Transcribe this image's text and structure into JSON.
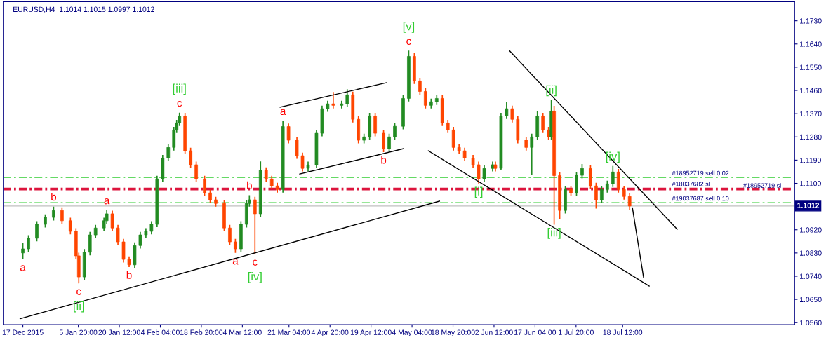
{
  "chart_data": {
    "type": "candlestick",
    "title": "EURUSD,H4  1.1014 1.1015 1.0997 1.1012",
    "colors": [
      "#228b22",
      "#228b22",
      "#228b22",
      "#228b22",
      "#228b22",
      "#ff4500",
      "#ff4500",
      "#ff4500",
      "#ff4500",
      "#228b22",
      "#228b22",
      "#228b22",
      "#228b22",
      "#228b22",
      "#ff4500",
      "#ff4500",
      "#ff4500",
      "#ff4500",
      "#228b22",
      "#228b22",
      "#228b22",
      "#228b22",
      "#228b22",
      "#228b22",
      "#228b22",
      "#228b22",
      "#228b22",
      "#228b22",
      "#ff4500",
      "#ff4500",
      "#ff4500",
      "#ff4500",
      "#ff4500",
      "#ff4500",
      "#ff4500",
      "#ff4500",
      "#ff4500",
      "#228b22",
      "#228b22",
      "#228b22",
      "#ff4500",
      "#228b22",
      "#ff4500",
      "#ff4500",
      "#ff4500",
      "#228b22",
      "#ff4500",
      "#ff4500",
      "#ff4500",
      "#228b22",
      "#228b22",
      "#228b22",
      "#228b22",
      "#ff4500",
      "#228b22",
      "#228b22",
      "#ff4500",
      "#ff4500",
      "#228b22",
      "#228b22",
      "#ff4500",
      "#ff4500",
      "#228b22",
      "#228b22",
      "#228b22",
      "#228b22",
      "#ff4500",
      "#ff4500",
      "#ff4500",
      "#228b22",
      "#228b22",
      "#ff4500",
      "#ff4500",
      "#ff4500",
      "#ff4500",
      "#ff4500",
      "#ff4500",
      "#ff4500",
      "#228b22",
      "#228b22",
      "#ff4500",
      "#228b22",
      "#228b22",
      "#ff4500",
      "#ff4500",
      "#ff4500",
      "#228b22",
      "#228b22",
      "#ff4500",
      "#ff4500",
      "#228b22",
      "#ff4500",
      "#ff4500",
      "#228b22",
      "#ff4500",
      "#228b22",
      "#228b22",
      "#ff4500",
      "#ff4500",
      "#228b22",
      "#228b22",
      "#228b22",
      "#ff4500",
      "#ff4500",
      "#ff4500"
    ],
    "x": [
      "2015-12-17",
      "2015-12-19",
      "2015-12-22",
      "2015-12-25",
      "2015-12-28",
      "2015-12-31",
      "2016-01-03",
      "2016-01-05",
      "2016-01-06",
      "2016-01-08",
      "2016-01-10",
      "2016-01-12",
      "2016-01-15",
      "2016-01-16",
      "2016-01-18",
      "2016-01-20",
      "2016-01-22",
      "2016-01-24",
      "2016-01-26",
      "2016-01-28",
      "2016-01-30",
      "2016-02-01",
      "2016-02-03",
      "2016-02-05",
      "2016-02-07",
      "2016-02-09",
      "2016-02-10",
      "2016-02-11",
      "2016-02-13",
      "2016-02-15",
      "2016-02-17",
      "2016-02-20",
      "2016-02-22",
      "2016-02-24",
      "2016-02-27",
      "2016-02-29",
      "2016-03-02",
      "2016-03-04",
      "2016-03-06",
      "2016-03-07",
      "2016-03-09",
      "2016-03-11",
      "2016-03-13",
      "2016-03-15",
      "2016-03-17",
      "2016-03-19",
      "2016-03-21",
      "2016-03-24",
      "2016-03-26",
      "2016-03-28",
      "2016-03-31",
      "2016-04-02",
      "2016-04-04",
      "2016-04-06",
      "2016-04-09",
      "2016-04-11",
      "2016-04-13",
      "2016-04-15",
      "2016-04-17",
      "2016-04-19",
      "2016-04-21",
      "2016-04-24",
      "2016-04-26",
      "2016-04-28",
      "2016-05-01",
      "2016-05-03",
      "2016-05-05",
      "2016-05-07",
      "2016-05-09",
      "2016-05-11",
      "2016-05-13",
      "2016-05-15",
      "2016-05-17",
      "2016-05-19",
      "2016-05-21",
      "2016-05-23",
      "2016-05-26",
      "2016-05-28",
      "2016-05-30",
      "2016-06-02",
      "2016-06-03",
      "2016-06-05",
      "2016-06-07",
      "2016-06-09",
      "2016-06-11",
      "2016-06-14",
      "2016-06-16",
      "2016-06-18",
      "2016-06-20",
      "2016-06-22",
      "2016-06-23",
      "2016-06-24",
      "2016-06-26",
      "2016-06-28",
      "2016-06-30",
      "2016-07-02",
      "2016-07-04",
      "2016-07-07",
      "2016-07-09",
      "2016-07-11",
      "2016-07-13",
      "2016-07-15",
      "2016-07-17",
      "2016-07-19",
      "2016-07-21"
    ],
    "ohlc": [
      [
        1.083,
        1.087,
        1.0805,
        1.0846
      ],
      [
        1.0846,
        1.0899,
        1.0834,
        1.0887
      ],
      [
        1.0887,
        1.0953,
        1.0875,
        1.0941
      ],
      [
        1.0941,
        1.098,
        1.0929,
        1.0968
      ],
      [
        1.0968,
        1.101,
        1.0956,
        1.0995
      ],
      [
        1.0995,
        1.1007,
        1.0943,
        1.0955
      ],
      [
        1.0955,
        1.0967,
        1.0902,
        1.0914
      ],
      [
        1.0914,
        1.0926,
        1.0807,
        1.0819
      ],
      [
        1.0819,
        1.0831,
        1.0712,
        1.0737
      ],
      [
        1.0737,
        1.0845,
        1.0725,
        1.0833
      ],
      [
        1.0833,
        1.0912,
        1.0821,
        1.09
      ],
      [
        1.09,
        1.0939,
        1.0888,
        1.0927
      ],
      [
        1.0927,
        1.0967,
        1.0915,
        1.0955
      ],
      [
        1.0955,
        1.0996,
        1.0943,
        1.0982
      ],
      [
        1.0982,
        1.0994,
        1.0915,
        1.0927
      ],
      [
        1.0927,
        1.0939,
        1.0861,
        1.0873
      ],
      [
        1.0873,
        1.0885,
        1.0793,
        1.0805
      ],
      [
        1.0805,
        1.0817,
        1.0775,
        1.0784
      ],
      [
        1.0784,
        1.0871,
        1.0772,
        1.0859
      ],
      [
        1.0859,
        1.0912,
        1.0847,
        1.09
      ],
      [
        1.09,
        1.0926,
        1.0888,
        1.0914
      ],
      [
        1.0914,
        1.0953,
        1.0902,
        1.0941
      ],
      [
        1.0941,
        1.1129,
        1.093,
        1.1117
      ],
      [
        1.1117,
        1.121,
        1.1105,
        1.1198
      ],
      [
        1.1198,
        1.1251,
        1.1186,
        1.1239
      ],
      [
        1.1239,
        1.1319,
        1.1227,
        1.1307
      ],
      [
        1.1307,
        1.1346,
        1.1295,
        1.1334
      ],
      [
        1.1334,
        1.1374,
        1.1322,
        1.1361
      ],
      [
        1.1361,
        1.1373,
        1.1214,
        1.1226
      ],
      [
        1.1226,
        1.1238,
        1.116,
        1.1172
      ],
      [
        1.1172,
        1.1184,
        1.1105,
        1.1117
      ],
      [
        1.1117,
        1.1129,
        1.1051,
        1.1063
      ],
      [
        1.1063,
        1.1075,
        1.1024,
        1.1036
      ],
      [
        1.1036,
        1.1048,
        1.101,
        1.1022
      ],
      [
        1.1022,
        1.1034,
        1.0915,
        1.0927
      ],
      [
        1.0927,
        1.0939,
        1.0861,
        1.0873
      ],
      [
        1.0873,
        1.0885,
        1.083,
        1.0846
      ],
      [
        1.0846,
        1.0953,
        1.0834,
        1.0941
      ],
      [
        1.0941,
        1.1034,
        1.0929,
        1.1022
      ],
      [
        1.1022,
        1.1054,
        1.101,
        1.1036
      ],
      [
        1.1036,
        1.1048,
        1.0826,
        1.0982
      ],
      [
        1.0982,
        1.1185,
        1.097,
        1.115
      ],
      [
        1.115,
        1.1162,
        1.1105,
        1.1117
      ],
      [
        1.1117,
        1.1129,
        1.1078,
        1.109
      ],
      [
        1.109,
        1.1102,
        1.1064,
        1.1076
      ],
      [
        1.1076,
        1.1342,
        1.1064,
        1.132
      ],
      [
        1.132,
        1.1332,
        1.1255,
        1.1267
      ],
      [
        1.1267,
        1.1279,
        1.1195,
        1.1207
      ],
      [
        1.1207,
        1.1219,
        1.1146,
        1.1158
      ],
      [
        1.1158,
        1.1184,
        1.1146,
        1.1172
      ],
      [
        1.1172,
        1.1306,
        1.116,
        1.1294
      ],
      [
        1.1294,
        1.1401,
        1.1282,
        1.1389
      ],
      [
        1.1389,
        1.142,
        1.1377,
        1.1408
      ],
      [
        1.1408,
        1.1454,
        1.139,
        1.1402
      ],
      [
        1.1402,
        1.142,
        1.139,
        1.1408
      ],
      [
        1.1408,
        1.1465,
        1.1396,
        1.1443
      ],
      [
        1.1443,
        1.1455,
        1.1336,
        1.1348
      ],
      [
        1.1348,
        1.136,
        1.1255,
        1.1267
      ],
      [
        1.1267,
        1.1292,
        1.1255,
        1.128
      ],
      [
        1.128,
        1.1373,
        1.1268,
        1.1361
      ],
      [
        1.1361,
        1.1373,
        1.1282,
        1.1294
      ],
      [
        1.1294,
        1.1306,
        1.1221,
        1.1234
      ],
      [
        1.1234,
        1.1292,
        1.1222,
        1.128
      ],
      [
        1.128,
        1.1333,
        1.1268,
        1.1321
      ],
      [
        1.1321,
        1.1441,
        1.1309,
        1.1429
      ],
      [
        1.1429,
        1.1614,
        1.1417,
        1.1592
      ],
      [
        1.1592,
        1.1604,
        1.1485,
        1.1497
      ],
      [
        1.1497,
        1.1509,
        1.1444,
        1.1456
      ],
      [
        1.1456,
        1.1468,
        1.139,
        1.1402
      ],
      [
        1.1402,
        1.1428,
        1.139,
        1.1416
      ],
      [
        1.1416,
        1.1441,
        1.1404,
        1.1429
      ],
      [
        1.1429,
        1.1441,
        1.1322,
        1.1334
      ],
      [
        1.1334,
        1.1346,
        1.1295,
        1.1307
      ],
      [
        1.1307,
        1.1319,
        1.1227,
        1.1239
      ],
      [
        1.1239,
        1.1251,
        1.1214,
        1.1226
      ],
      [
        1.1226,
        1.1238,
        1.1186,
        1.1198
      ],
      [
        1.1198,
        1.121,
        1.116,
        1.1172
      ],
      [
        1.1172,
        1.1184,
        1.1099,
        1.1117
      ],
      [
        1.1117,
        1.117,
        1.1105,
        1.1158
      ],
      [
        1.1158,
        1.1184,
        1.1146,
        1.1172
      ],
      [
        1.1172,
        1.1184,
        1.1146,
        1.1158
      ],
      [
        1.1158,
        1.1373,
        1.115,
        1.1361
      ],
      [
        1.1361,
        1.1416,
        1.1349,
        1.1389
      ],
      [
        1.1389,
        1.1401,
        1.1336,
        1.1348
      ],
      [
        1.1348,
        1.136,
        1.1255,
        1.1267
      ],
      [
        1.1267,
        1.1279,
        1.1227,
        1.1239
      ],
      [
        1.1239,
        1.1292,
        1.1131,
        1.128
      ],
      [
        1.128,
        1.138,
        1.1268,
        1.1361
      ],
      [
        1.1361,
        1.1373,
        1.1295,
        1.1307
      ],
      [
        1.1307,
        1.1319,
        1.1268,
        1.128
      ],
      [
        1.128,
        1.1425,
        1.1268,
        1.138
      ],
      [
        1.138,
        1.14,
        1.094,
        1.113
      ],
      [
        1.113,
        1.1142,
        1.096,
        1.0995
      ],
      [
        1.0995,
        1.1088,
        1.0983,
        1.1076
      ],
      [
        1.1076,
        1.1088,
        1.1051,
        1.1063
      ],
      [
        1.1063,
        1.1143,
        1.1051,
        1.1131
      ],
      [
        1.1131,
        1.1175,
        1.1119,
        1.1158
      ],
      [
        1.1158,
        1.117,
        1.1078,
        1.109
      ],
      [
        1.109,
        1.1102,
        1.1002,
        1.1036
      ],
      [
        1.1036,
        1.1088,
        1.1024,
        1.1076
      ],
      [
        1.1076,
        1.111,
        1.1064,
        1.1098
      ],
      [
        1.1098,
        1.1167,
        1.1086,
        1.1144
      ],
      [
        1.1144,
        1.1156,
        1.1064,
        1.1076
      ],
      [
        1.1076,
        1.1088,
        1.1037,
        1.1049
      ],
      [
        1.1049,
        1.1061,
        1.0997,
        1.1012
      ]
    ],
    "series": [
      {
        "type": "line",
        "color": "#000000",
        "x": [
          "2015-12-16",
          "2016-05-14"
        ],
        "values": [
          1.0575,
          1.1031
        ]
      },
      {
        "type": "line",
        "color": "#000000",
        "x": [
          "2016-03-18",
          "2016-04-25"
        ],
        "values": [
          1.1395,
          1.149
        ]
      },
      {
        "type": "line",
        "color": "#000000",
        "x": [
          "2016-03-25",
          "2016-05-01"
        ],
        "values": [
          1.1136,
          1.1234
        ]
      },
      {
        "type": "line",
        "color": "#000000",
        "x": [
          "2016-05-10",
          "2016-07-28"
        ],
        "values": [
          1.1226,
          1.0702
        ]
      },
      {
        "type": "line",
        "color": "#000000",
        "x": [
          "2016-06-08",
          "2016-08-07"
        ],
        "values": [
          1.1614,
          1.0922
        ]
      },
      {
        "type": "line",
        "color": "#000000",
        "x": [
          "2016-07-22",
          "2016-07-26"
        ],
        "values": [
          1.1005,
          1.0734
        ]
      }
    ],
    "ref_lines": [
      {
        "axis": "y",
        "value": 1.1123,
        "label": "#18952719 sell 0.02",
        "color": "#32cd32",
        "line_style": "dashed"
      },
      {
        "axis": "y",
        "value": 1.1081,
        "label": "#18037682 sl",
        "color": "#dc143c",
        "line_style": "dashed"
      },
      {
        "axis": "y",
        "value": 1.1075,
        "label": "#18952719 sl",
        "color": "#dc143c",
        "line_style": "dashed"
      },
      {
        "axis": "y",
        "value": 1.1025,
        "label": "#19037687 sell 0.10",
        "color": "#32cd32",
        "line_style": "dashed"
      },
      {
        "axis": "y",
        "value": 1.1012,
        "label": "1.1012",
        "color": "#c0c0c0",
        "line_style": "solid"
      }
    ],
    "annotations": [
      {
        "text": "a",
        "x": "2015-12-17",
        "y": 1.0805
      },
      {
        "text": "b",
        "x": "2015-12-28",
        "y": 1.101
      },
      {
        "text": "c",
        "x": "2016-01-06",
        "y": 1.0712
      },
      {
        "text": "[ii]",
        "x": "2016-01-06",
        "y": 1.0712
      },
      {
        "text": "a",
        "x": "2016-01-16",
        "y": 1.0996
      },
      {
        "text": "b",
        "x": "2016-01-24",
        "y": 1.0775
      },
      {
        "text": "c",
        "x": "2016-02-11",
        "y": 1.1374
      },
      {
        "text": "[iii]",
        "x": "2016-02-11",
        "y": 1.1374
      },
      {
        "text": "a",
        "x": "2016-03-02",
        "y": 1.083
      },
      {
        "text": "b",
        "x": "2016-03-07",
        "y": 1.1054
      },
      {
        "text": "c",
        "x": "2016-03-09",
        "y": 1.0826
      },
      {
        "text": "[iv]",
        "x": "2016-03-09",
        "y": 1.0826
      },
      {
        "text": "a",
        "x": "2016-03-19",
        "y": 1.1342
      },
      {
        "text": "b",
        "x": "2016-04-24",
        "y": 1.1221
      },
      {
        "text": "c",
        "x": "2016-05-03",
        "y": 1.1614
      },
      {
        "text": "[v]",
        "x": "2016-05-03",
        "y": 1.1614
      },
      {
        "text": "[i]",
        "x": "2016-05-28",
        "y": 1.1099
      },
      {
        "text": "[ii]",
        "x": "2016-06-23",
        "y": 1.1425
      },
      {
        "text": "[iii]",
        "x": "2016-06-24",
        "y": 1.094
      },
      {
        "text": "[iv]",
        "x": "2016-07-15",
        "y": 1.1167
      }
    ],
    "xlim": [
      "2015-12-10",
      "2016-09-18"
    ],
    "xticks": [
      {
        "value": "2015-12-17",
        "label": "17 Dec 2015"
      },
      {
        "value": "2016-01-05T20:00",
        "label": "5 Jan 20:00"
      },
      {
        "value": "2016-01-20T12:00",
        "label": "20 Jan 12:00"
      },
      {
        "value": "2016-02-04T04:00",
        "label": "4 Feb 04:00"
      },
      {
        "value": "2016-02-18T20:00",
        "label": "18 Feb 20:00"
      },
      {
        "value": "2016-03-04T12:00",
        "label": "4 Mar 12:00"
      },
      {
        "value": "2016-03-21T04:00",
        "label": "21 Mar 04:00"
      },
      {
        "value": "2016-04-04T20:00",
        "label": "4 Apr 20:00"
      },
      {
        "value": "2016-04-19T12:00",
        "label": "19 Apr 12:00"
      },
      {
        "value": "2016-05-04T04:00",
        "label": "4 May 04:00"
      },
      {
        "value": "2016-05-18T20:00",
        "label": "18 May 20:00"
      },
      {
        "value": "2016-06-02T12:00",
        "label": "2 Jun 12:00"
      },
      {
        "value": "2016-06-17T04:00",
        "label": "17 Jun 04:00"
      },
      {
        "value": "2016-07-01T20:00",
        "label": "1 Jul 20:00"
      },
      {
        "value": "2016-07-18T12:00",
        "label": "18 Jul 12:00"
      }
    ],
    "ylim": [
      1.0552,
      1.1804
    ],
    "yticks": [
      {
        "value": 1.056,
        "label": "1.0560"
      },
      {
        "value": 1.065,
        "label": "1.0650"
      },
      {
        "value": 1.074,
        "label": "1.0740"
      },
      {
        "value": 1.083,
        "label": "1.0830"
      },
      {
        "value": 1.092,
        "label": "1.0920"
      },
      {
        "value": 1.11,
        "label": "1.1100"
      },
      {
        "value": 1.119,
        "label": "1.1190"
      },
      {
        "value": 1.128,
        "label": "1.1280"
      },
      {
        "value": 1.137,
        "label": "1.1370"
      },
      {
        "value": 1.146,
        "label": "1.1460"
      },
      {
        "value": 1.155,
        "label": "1.1550"
      },
      {
        "value": 1.164,
        "label": "1.1640"
      },
      {
        "value": 1.173,
        "label": "1.1730"
      }
    ]
  }
}
